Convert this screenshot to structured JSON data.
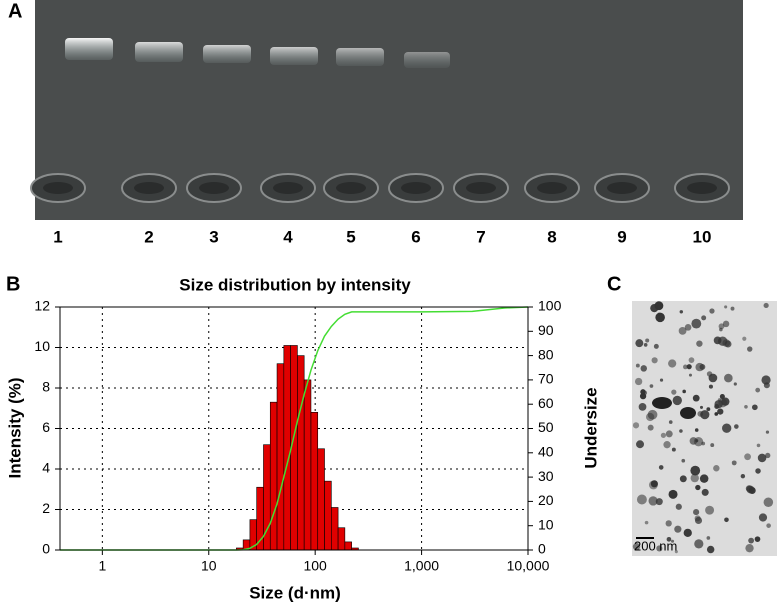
{
  "panels": {
    "a": {
      "label": "A",
      "lanes": [
        "1",
        "2",
        "3",
        "4",
        "5",
        "6",
        "7",
        "8",
        "9",
        "10"
      ]
    },
    "b": {
      "label": "B"
    },
    "c": {
      "label": "C",
      "scale_bar": "200 nm"
    }
  },
  "chart_data": {
    "type": "histogram",
    "title": "Size distribution by intensity",
    "x_label": "Size (d·nm)",
    "y_label": "Intensity (%)",
    "y2_label": "Undersize",
    "x_scale": "log",
    "grid": true,
    "bins": [
      18.17,
      21.04,
      24.36,
      28.21,
      32.67,
      37.84,
      43.82,
      50.75,
      58.77,
      68.06,
      78.82,
      91.28,
      105.7,
      122.4,
      141.8,
      164.2,
      190.1,
      220.2,
      255
    ],
    "values": [
      0.1,
      0.5,
      1.5,
      3.1,
      5.2,
      7.3,
      9.2,
      10.1,
      10.1,
      9.6,
      8.4,
      6.8,
      5.0,
      3.4,
      2.1,
      1.1,
      0.4,
      0.1
    ],
    "color": "#e00000",
    "line": {
      "x": [
        0.4,
        18.17,
        21.04,
        24.36,
        28.21,
        32.67,
        37.84,
        43.82,
        50.75,
        58.77,
        68.06,
        78.82,
        91.28,
        105.7,
        122.4,
        141.8,
        164.2,
        190.1,
        220.2,
        255,
        1000,
        3000,
        6000,
        10000
      ],
      "values": [
        0,
        0,
        0.1,
        0.7,
        2.3,
        5.6,
        11,
        19,
        30,
        41,
        53,
        64,
        74,
        82,
        88,
        92,
        95,
        97,
        98,
        98,
        98,
        98.2,
        99.6,
        100
      ],
      "color": "#44dd33",
      "axis": "y2"
    },
    "xlim": [
      0.4,
      10000
    ],
    "xticks": [
      1,
      10,
      100,
      {
        "value": 1000,
        "label": "1,000"
      },
      {
        "value": 10000,
        "label": "10,000"
      }
    ],
    "ylim": [
      0,
      12
    ],
    "yticks": [
      0,
      2,
      4,
      6,
      8,
      10,
      12
    ],
    "y2lim": [
      0,
      100
    ],
    "y2ticks": [
      0,
      10,
      20,
      30,
      40,
      50,
      60,
      70,
      80,
      90,
      100
    ]
  }
}
